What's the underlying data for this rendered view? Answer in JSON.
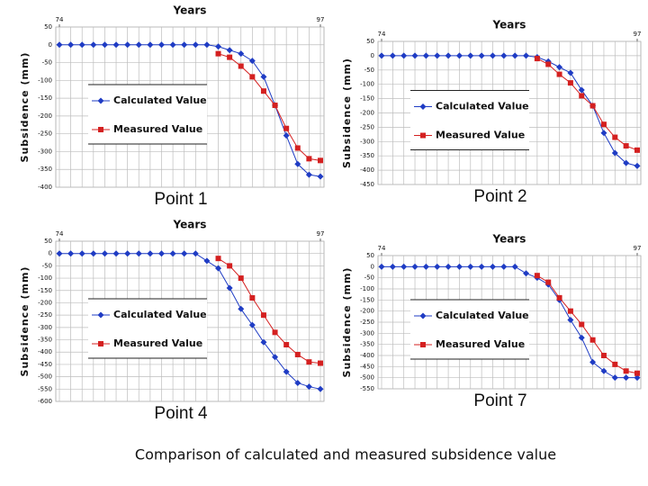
{
  "chart_data": [
    {
      "type": "line",
      "title": "Point 1",
      "x_label": "Years",
      "y_label": "Subsidence (mm)",
      "x": [
        74,
        75,
        76,
        77,
        78,
        79,
        80,
        81,
        82,
        83,
        84,
        85,
        86,
        87,
        88,
        89,
        90,
        91,
        92,
        93,
        94,
        95,
        96,
        97
      ],
      "xlim": [
        74,
        97
      ],
      "xticks": [
        74,
        97
      ],
      "ylim": [
        -400,
        50
      ],
      "yticks": [
        -400,
        -350,
        -300,
        -250,
        -200,
        -150,
        -100,
        -50,
        0,
        50
      ],
      "grid": true,
      "legend": "center-left",
      "series": [
        {
          "name": "Calculated Value",
          "color": "#1f3cc4",
          "marker": "diamond",
          "values": [
            0,
            0,
            0,
            0,
            0,
            0,
            0,
            0,
            0,
            0,
            0,
            0,
            0,
            0,
            -5,
            -15,
            -25,
            -45,
            -90,
            -170,
            -255,
            -335,
            -365,
            -370
          ]
        },
        {
          "name": "Measured Value",
          "color": "#d42020",
          "marker": "square",
          "values": [
            null,
            null,
            null,
            null,
            null,
            null,
            null,
            null,
            null,
            null,
            null,
            null,
            null,
            null,
            -25,
            -35,
            -60,
            -90,
            -130,
            -170,
            -235,
            -290,
            -320,
            -325
          ]
        }
      ]
    },
    {
      "type": "line",
      "title": "Point 2",
      "x_label": "Years",
      "y_label": "Subsidence (mm)",
      "x": [
        74,
        75,
        76,
        77,
        78,
        79,
        80,
        81,
        82,
        83,
        84,
        85,
        86,
        87,
        88,
        89,
        90,
        91,
        92,
        93,
        94,
        95,
        96,
        97
      ],
      "xlim": [
        74,
        97
      ],
      "xticks": [
        74,
        97
      ],
      "ylim": [
        -450,
        50
      ],
      "yticks": [
        -450,
        -400,
        -350,
        -300,
        -250,
        -200,
        -150,
        -100,
        -50,
        0,
        50
      ],
      "grid": true,
      "legend": "center-left",
      "series": [
        {
          "name": "Calculated Value",
          "color": "#1f3cc4",
          "marker": "diamond",
          "values": [
            0,
            0,
            0,
            0,
            0,
            0,
            0,
            0,
            0,
            0,
            0,
            0,
            0,
            0,
            -5,
            -20,
            -40,
            -60,
            -120,
            -175,
            -270,
            -340,
            -375,
            -385
          ]
        },
        {
          "name": "Measured Value",
          "color": "#d42020",
          "marker": "square",
          "values": [
            null,
            null,
            null,
            null,
            null,
            null,
            null,
            null,
            null,
            null,
            null,
            null,
            null,
            null,
            -10,
            -30,
            -65,
            -95,
            -140,
            -175,
            -240,
            -285,
            -315,
            -330
          ]
        }
      ]
    },
    {
      "type": "line",
      "title": "Point 4",
      "x_label": "Years",
      "y_label": "Subsidence (mm)",
      "x": [
        74,
        75,
        76,
        77,
        78,
        79,
        80,
        81,
        82,
        83,
        84,
        85,
        86,
        87,
        88,
        89,
        90,
        91,
        92,
        93,
        94,
        95,
        96,
        97
      ],
      "xlim": [
        74,
        97
      ],
      "xticks": [
        74,
        97
      ],
      "ylim": [
        -600,
        50
      ],
      "yticks": [
        -600,
        -550,
        -500,
        -450,
        -400,
        -350,
        -300,
        -250,
        -200,
        -150,
        -100,
        -50,
        0,
        50
      ],
      "grid": true,
      "legend": "center-left",
      "series": [
        {
          "name": "Calculated Value",
          "color": "#1f3cc4",
          "marker": "diamond",
          "values": [
            0,
            0,
            0,
            0,
            0,
            0,
            0,
            0,
            0,
            0,
            0,
            0,
            0,
            -30,
            -60,
            -140,
            -225,
            -290,
            -360,
            -420,
            -480,
            -525,
            -540,
            -550
          ]
        },
        {
          "name": "Measured Value",
          "color": "#d42020",
          "marker": "square",
          "values": [
            null,
            null,
            null,
            null,
            null,
            null,
            null,
            null,
            null,
            null,
            null,
            null,
            null,
            null,
            -20,
            -50,
            -100,
            -180,
            -250,
            -320,
            -370,
            -410,
            -440,
            -445
          ]
        }
      ]
    },
    {
      "type": "line",
      "title": "Point 7",
      "x_label": "Years",
      "y_label": "Subsidence (mm)",
      "x": [
        74,
        75,
        76,
        77,
        78,
        79,
        80,
        81,
        82,
        83,
        84,
        85,
        86,
        87,
        88,
        89,
        90,
        91,
        92,
        93,
        94,
        95,
        96,
        97
      ],
      "xlim": [
        74,
        97
      ],
      "xticks": [
        74,
        97
      ],
      "ylim": [
        -550,
        50
      ],
      "yticks": [
        -550,
        -500,
        -450,
        -400,
        -350,
        -300,
        -250,
        -200,
        -150,
        -100,
        -50,
        0,
        50
      ],
      "grid": true,
      "legend": "center-left",
      "series": [
        {
          "name": "Calculated Value",
          "color": "#1f3cc4",
          "marker": "diamond",
          "values": [
            0,
            0,
            0,
            0,
            0,
            0,
            0,
            0,
            0,
            0,
            0,
            0,
            0,
            -30,
            -50,
            -80,
            -150,
            -240,
            -320,
            -430,
            -470,
            -500,
            -500,
            -500
          ]
        },
        {
          "name": "Measured Value",
          "color": "#d42020",
          "marker": "square",
          "values": [
            null,
            null,
            null,
            null,
            null,
            null,
            null,
            null,
            null,
            null,
            null,
            null,
            null,
            null,
            -40,
            -70,
            -140,
            -200,
            -260,
            -330,
            -400,
            -440,
            -470,
            -480
          ]
        }
      ]
    }
  ],
  "caption": "Comparison of calculated and measured subsidence value"
}
